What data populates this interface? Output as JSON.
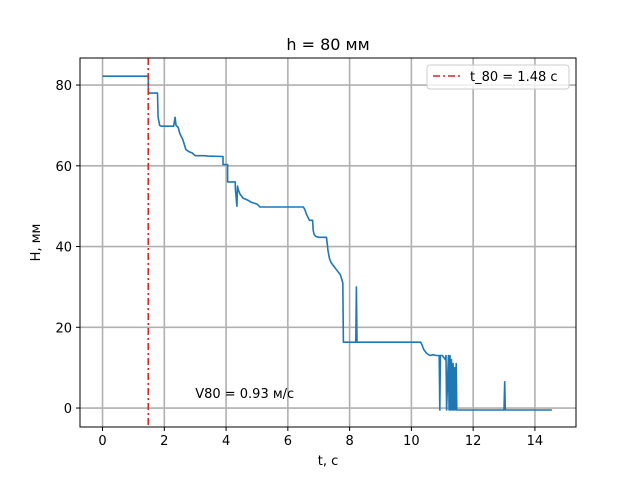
{
  "chart_data": {
    "type": "line",
    "title": "h = 80 мм",
    "xlabel": "t, с",
    "ylabel": "H, мм",
    "xlim": [
      -0.73,
      15.33
    ],
    "ylim": [
      -4.7,
      86.7
    ],
    "xticks": [
      0,
      2,
      4,
      6,
      8,
      10,
      12,
      14
    ],
    "yticks": [
      0,
      20,
      40,
      60,
      80
    ],
    "grid": true,
    "legend_position": "top-right",
    "colors": {
      "series": "#1f77b4",
      "vline": "#d62728",
      "grid": "#b0b0b0"
    },
    "series": [
      {
        "values_description": "step trace",
        "x": [
          0,
          1.48,
          1.48,
          1.78,
          1.8,
          1.85,
          1.9,
          2.3,
          2.35,
          2.38,
          2.45,
          2.5,
          2.6,
          2.7,
          2.8,
          2.9,
          3.0,
          3.3,
          3.4,
          3.9,
          3.9,
          4.05,
          4.05,
          4.3,
          4.3,
          4.35,
          4.37,
          4.4,
          4.45,
          4.55,
          4.7,
          4.8,
          5.0,
          5.1,
          6.5,
          6.55,
          6.6,
          6.7,
          6.8,
          6.82,
          6.85,
          6.9,
          7.0,
          7.25,
          7.3,
          7.35,
          7.4,
          7.5,
          7.6,
          7.7,
          7.78,
          7.8,
          7.82,
          8.2,
          8.22,
          8.24,
          10.3,
          10.35,
          10.4,
          10.5,
          10.6,
          10.7,
          10.8,
          10.9,
          10.92,
          10.94,
          11.0,
          11.1,
          11.12,
          11.14,
          11.2,
          11.22,
          11.25,
          11.27,
          11.3,
          11.32,
          11.35,
          11.37,
          11.4,
          11.42,
          11.45,
          11.47,
          11.5,
          13.0,
          13.02,
          13.04,
          14.55
        ],
        "y": [
          82.2,
          82.2,
          78,
          78,
          72,
          70,
          69.8,
          69.8,
          72,
          70,
          69.5,
          68,
          66.5,
          64,
          63.5,
          63.2,
          62.5,
          62.5,
          62.4,
          62.3,
          60.3,
          60.3,
          56,
          56,
          54.5,
          50,
          55,
          54,
          53,
          52,
          51.5,
          51,
          50.5,
          49.8,
          49.8,
          49.2,
          48,
          46.5,
          46.5,
          44,
          43,
          42.5,
          42.3,
          42.3,
          39,
          37,
          36,
          35,
          34,
          33,
          31,
          16.3,
          16.3,
          16.3,
          30,
          16.3,
          16.3,
          15.5,
          14.5,
          13.5,
          13,
          13.2,
          13,
          13,
          -0.5,
          13,
          13,
          12,
          13,
          -0.5,
          13,
          -0.5,
          13,
          -0.5,
          12,
          -0.5,
          11,
          -0.5,
          10,
          -0.5,
          11,
          -0.5,
          -0.5,
          -0.5,
          6.5,
          -0.5,
          -0.5
        ]
      }
    ],
    "vline": {
      "x": 1.48,
      "label": "t_80 = 1.48 с"
    },
    "annotation": {
      "text": "V80 = 0.93 м/с",
      "x": 3.0,
      "y": 2.5
    }
  }
}
